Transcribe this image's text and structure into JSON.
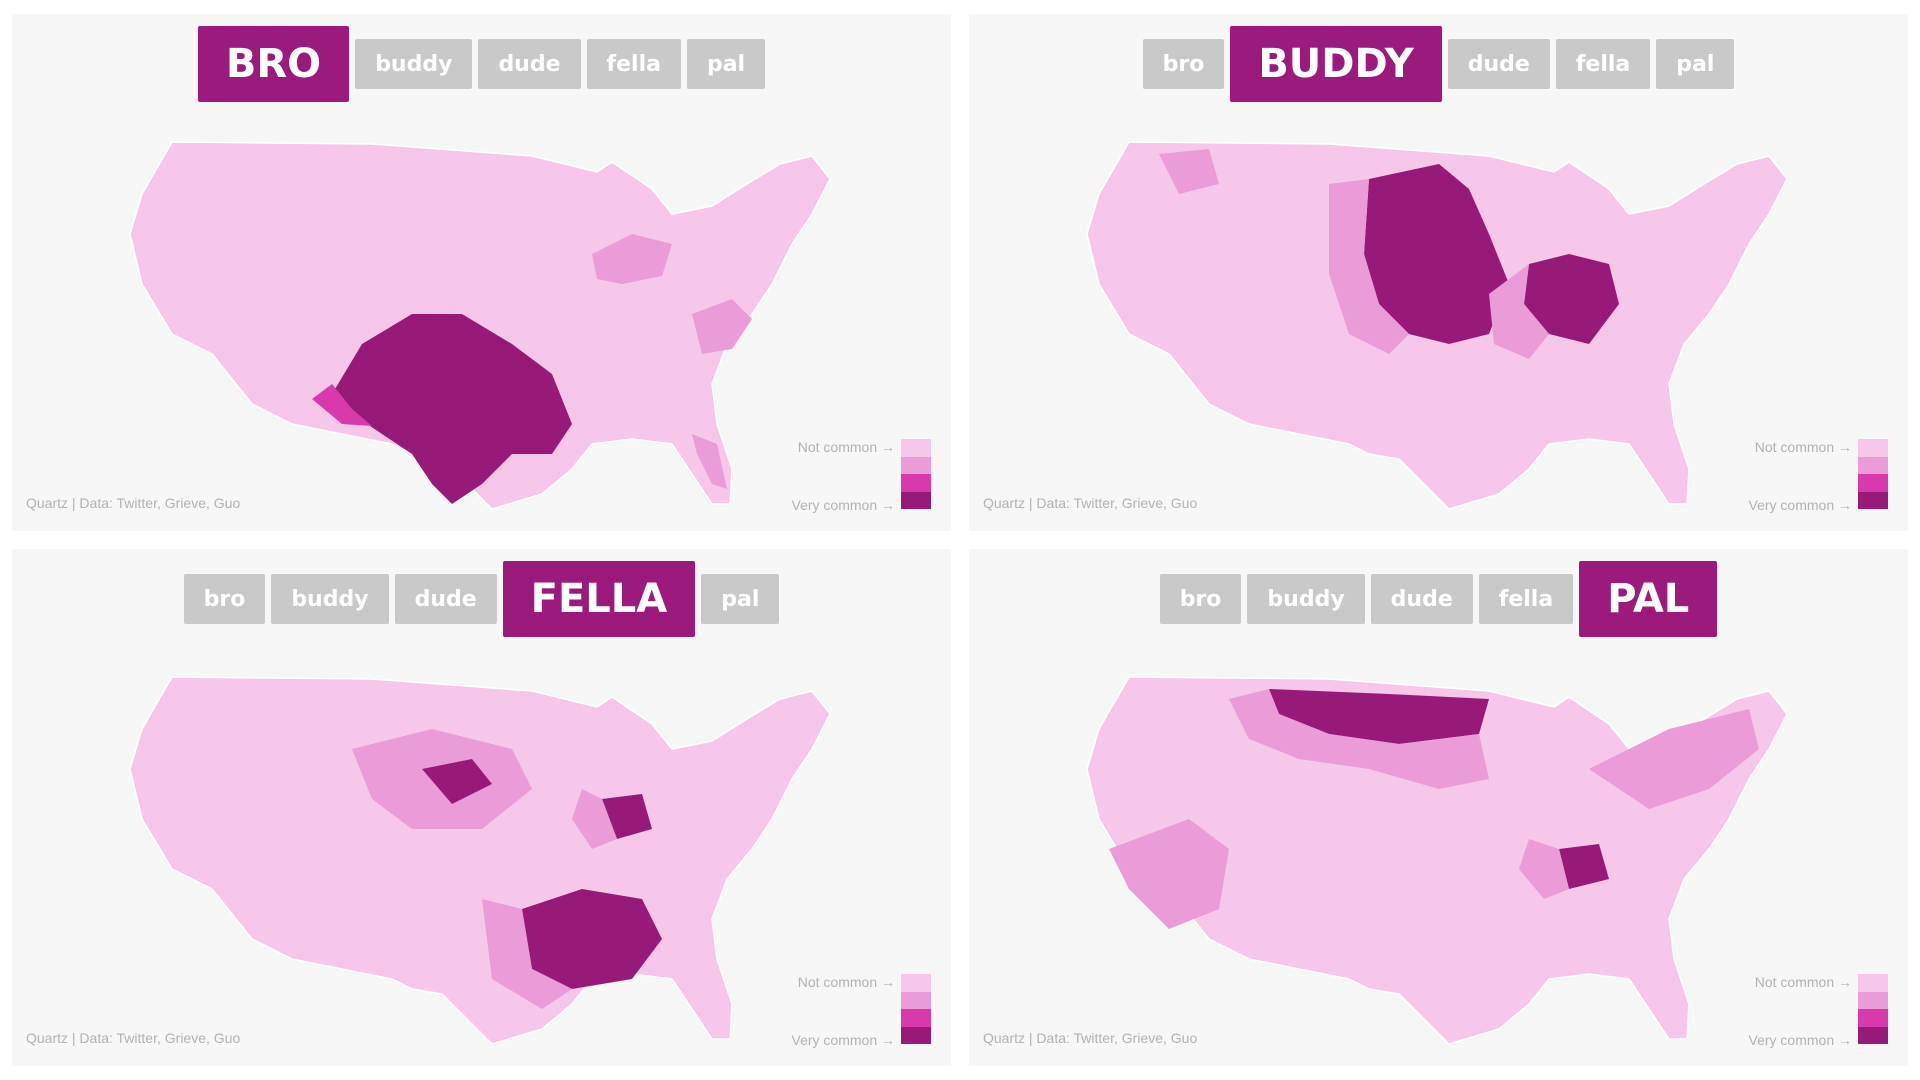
{
  "credit_text": "Quartz | Data: Twitter, Grieve, Guo",
  "legend": {
    "top_label": "Not common →",
    "bottom_label": "Very common →",
    "colors": [
      "#f6c7ea",
      "#ea9bd8",
      "#d83aae",
      "#971a78"
    ]
  },
  "panels": [
    {
      "tabs": [
        {
          "label": "BRO",
          "active": true
        },
        {
          "label": "buddy",
          "active": false
        },
        {
          "label": "dude",
          "active": false
        },
        {
          "label": "fella",
          "active": false
        },
        {
          "label": "pal",
          "active": false
        }
      ]
    },
    {
      "tabs": [
        {
          "label": "bro",
          "active": false
        },
        {
          "label": "BUDDY",
          "active": true
        },
        {
          "label": "dude",
          "active": false
        },
        {
          "label": "fella",
          "active": false
        },
        {
          "label": "pal",
          "active": false
        }
      ]
    },
    {
      "tabs": [
        {
          "label": "bro",
          "active": false
        },
        {
          "label": "buddy",
          "active": false
        },
        {
          "label": "dude",
          "active": false
        },
        {
          "label": "FELLA",
          "active": true
        },
        {
          "label": "pal",
          "active": false
        }
      ]
    },
    {
      "tabs": [
        {
          "label": "bro",
          "active": false
        },
        {
          "label": "buddy",
          "active": false
        },
        {
          "label": "dude",
          "active": false
        },
        {
          "label": "fella",
          "active": false
        },
        {
          "label": "PAL",
          "active": true
        }
      ]
    }
  ]
}
